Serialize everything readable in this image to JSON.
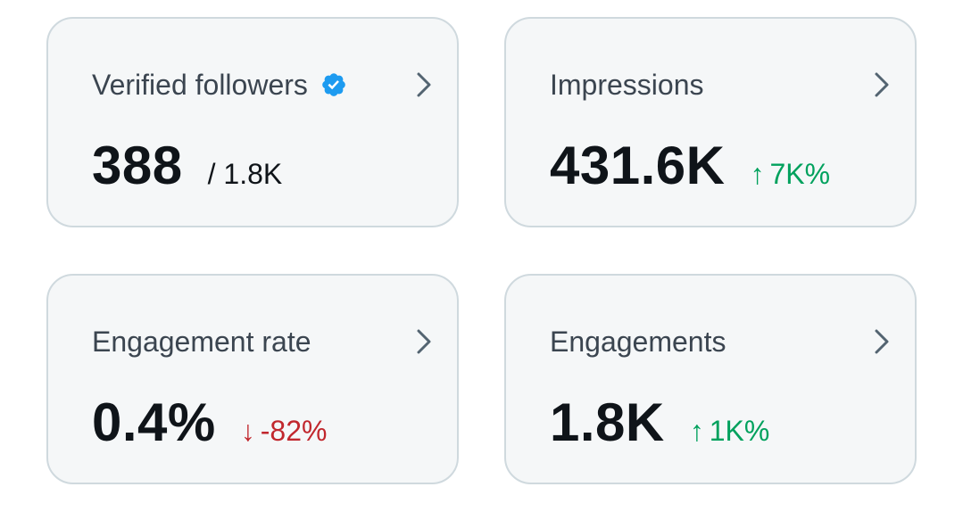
{
  "cards": [
    {
      "title": "Verified followers",
      "value": "388",
      "secondary": "/ 1.8K",
      "verified_icon": "verified-badge-icon",
      "badge_color": "#1d9bf0"
    },
    {
      "title": "Impressions",
      "value": "431.6K",
      "delta_arrow": "↑",
      "delta": "7K%",
      "delta_color": "#00a15d"
    },
    {
      "title": "Engagement rate",
      "value": "0.4%",
      "delta_arrow": "↓",
      "delta": "-82%",
      "delta_color": "#c1272d"
    },
    {
      "title": "Engagements",
      "value": "1.8K",
      "delta_arrow": "↑",
      "delta": "1K%",
      "delta_color": "#00a15d"
    }
  ],
  "icons": {
    "chevron": "chevron-right-icon"
  }
}
